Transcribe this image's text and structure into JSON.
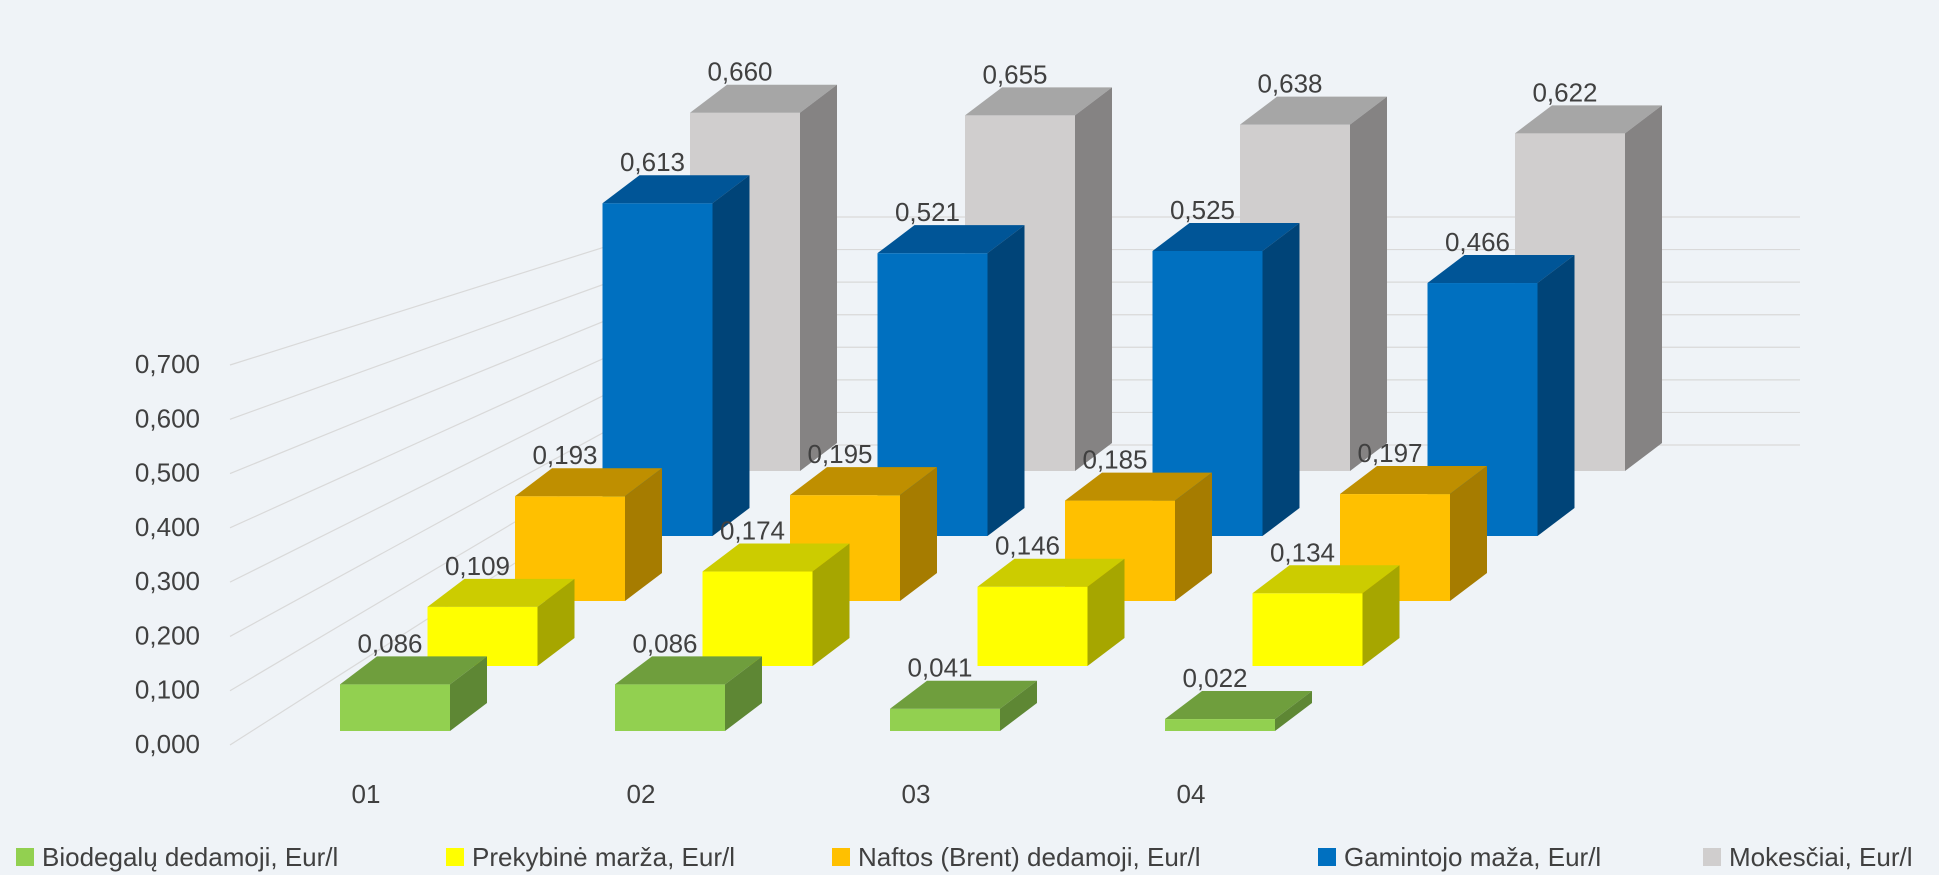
{
  "chart_data": {
    "type": "bar",
    "variant": "3d-column-depth",
    "categories": [
      "01",
      "02",
      "03",
      "04"
    ],
    "series": [
      {
        "name": "Biodegalų dedamoji, Eur/l",
        "values": [
          0.086,
          0.086,
          0.041,
          0.022
        ],
        "labels": [
          "0,086",
          "0,086",
          "0,041",
          "0,022"
        ],
        "color": "#92d050",
        "top_color": "#6f9e3d",
        "side_color": "#5e8734"
      },
      {
        "name": "Prekybinė marža, Eur/l",
        "values": [
          0.109,
          0.174,
          0.146,
          0.134
        ],
        "labels": [
          "0,109",
          "0,174",
          "0,146",
          "0,134"
        ],
        "color": "#ffff00",
        "top_color": "#cccc00",
        "side_color": "#a6a600"
      },
      {
        "name": "Naftos (Brent) dedamoji, Eur/l",
        "values": [
          0.193,
          0.195,
          0.185,
          0.197
        ],
        "labels": [
          "0,193",
          "0,195",
          "0,185",
          "0,197"
        ],
        "color": "#ffc000",
        "top_color": "#bf8f00",
        "side_color": "#a67c00"
      },
      {
        "name": "Gamintojo maža, Eur/l",
        "values": [
          0.613,
          0.521,
          0.525,
          0.466
        ],
        "labels": [
          "0,613",
          "0,521",
          "0,525",
          "0,466"
        ],
        "color": "#0070c0",
        "top_color": "#005597",
        "side_color": "#004478"
      },
      {
        "name": "Mokesčiai, Eur/l",
        "values": [
          0.66,
          0.655,
          0.638,
          0.622
        ],
        "labels": [
          "0,660",
          "0,655",
          "0,638",
          "0,622"
        ],
        "color": "#d0cece",
        "top_color": "#a6a6a6",
        "side_color": "#858383"
      }
    ],
    "ylim": [
      0,
      0.7
    ],
    "y_ticks": [
      "0,000",
      "0,100",
      "0,200",
      "0,300",
      "0,400",
      "0,500",
      "0,600",
      "0,700"
    ],
    "grid": true,
    "legend": "bottom",
    "title": "",
    "xlabel": "",
    "ylabel": ""
  }
}
